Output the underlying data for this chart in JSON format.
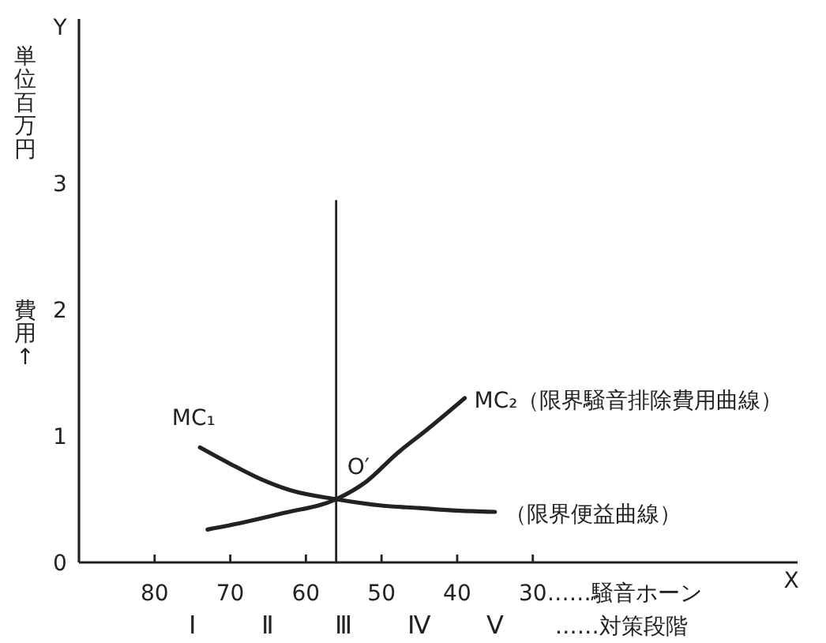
{
  "chart_data": {
    "type": "line",
    "ylabel": "単位百万円",
    "xlabel": "……騒音ホーン",
    "xlim": [
      90,
      -5
    ],
    "xticks": [
      80,
      70,
      60,
      50,
      40,
      30
    ],
    "ylim": [
      0,
      4.3
    ],
    "yticks": [
      0,
      1,
      2,
      3
    ],
    "grid": false,
    "marker": "none",
    "line_style": "solid",
    "series": [
      {
        "name": "MC₁",
        "color": "#222222",
        "x": [
          74,
          70,
          66,
          62,
          56,
          50,
          45,
          40,
          35
        ],
        "values": [
          0.91,
          0.78,
          0.66,
          0.57,
          0.5,
          0.45,
          0.43,
          0.41,
          0.4
        ]
      },
      {
        "name": "MC₂（限界騒音排除費用曲線）",
        "color": "#222222",
        "x": [
          73,
          68,
          63,
          56,
          52,
          48,
          44,
          39
        ],
        "values": [
          0.26,
          0.32,
          0.39,
          0.5,
          0.64,
          0.86,
          1.05,
          1.3
        ]
      },
      {
        "color": "#222222",
        "x": [
          56,
          56
        ],
        "values": [
          0,
          2.86
        ]
      }
    ],
    "annotations": [
      "費用↑",
      "Y",
      "X",
      "Ⅰ",
      "Ⅱ",
      "Ⅲ",
      "Ⅳ",
      "Ⅴ",
      "……対策段階",
      {
        "text": "O′",
        "x": 56,
        "y": 0.5
      },
      {
        "text": "（限界便益曲線）",
        "x": 35,
        "y": 0.4
      }
    ]
  }
}
